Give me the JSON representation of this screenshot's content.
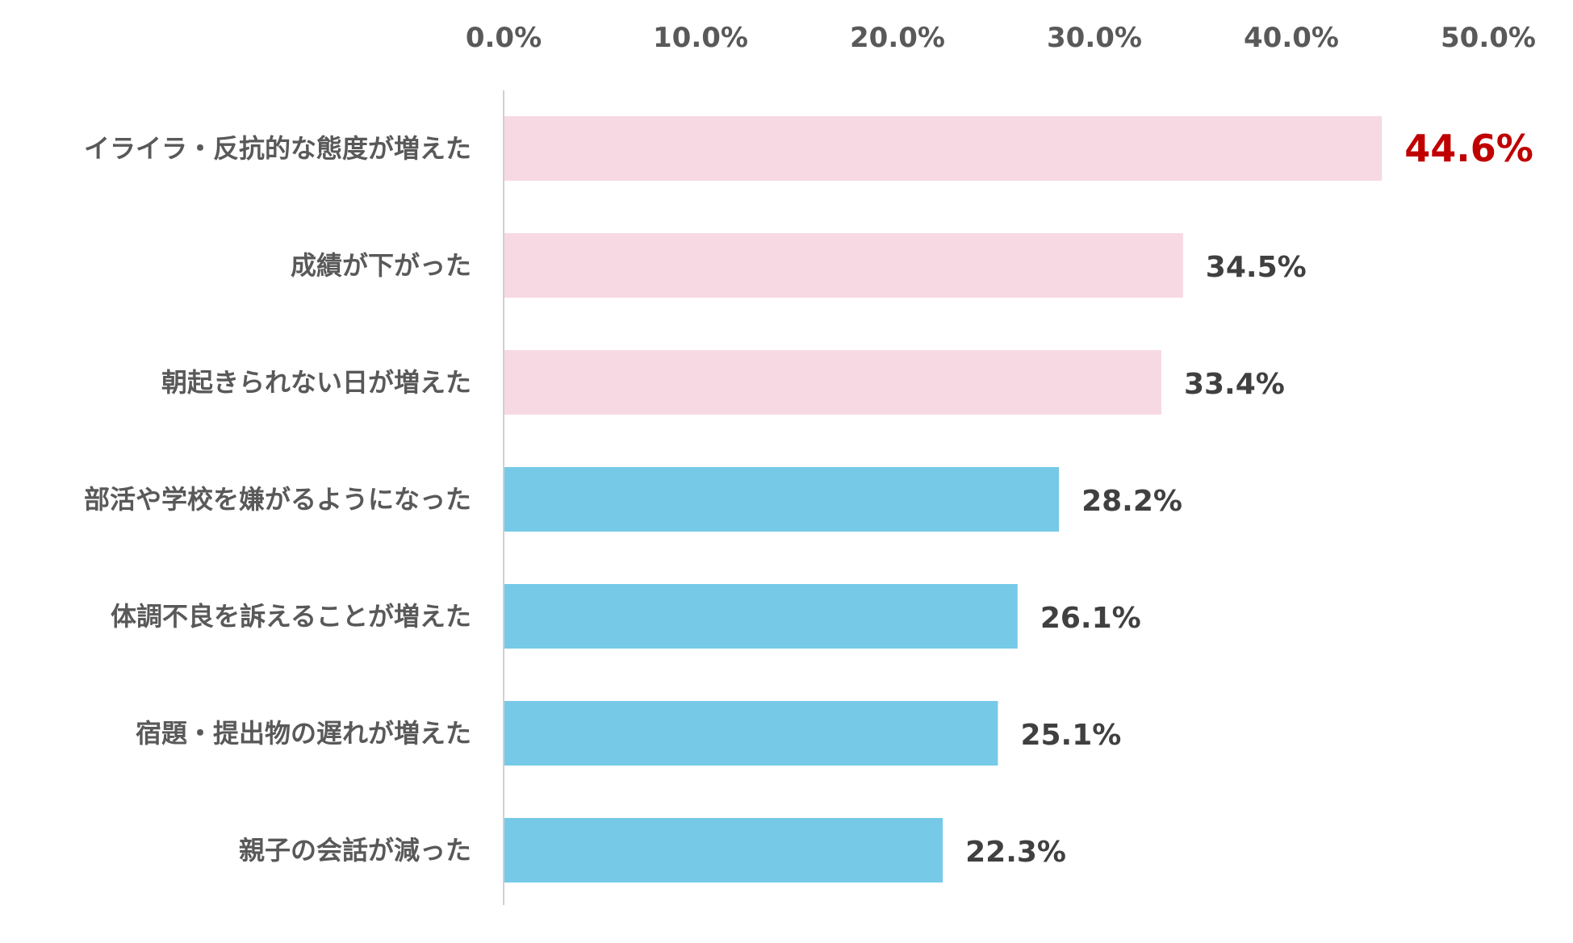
{
  "chart_data": {
    "type": "bar",
    "orientation": "horizontal",
    "title": "",
    "xlabel": "",
    "ylabel": "",
    "xlim": [
      0,
      50
    ],
    "ticks": [
      "0.0%",
      "10.0%",
      "20.0%",
      "30.0%",
      "40.0%",
      "50.0%"
    ],
    "tick_values": [
      0,
      10,
      20,
      30,
      40,
      50
    ],
    "grid": false,
    "categories": [
      "イライラ・反抗的な態度が増えた",
      "成績が下がった",
      "朝起きられない日が増えた",
      "部活や学校を嫌がるようになった",
      "体調不良を訴えることが増えた",
      "宿題・提出物の遅れが増えた",
      "親子の会話が減った"
    ],
    "values": [
      44.6,
      34.5,
      33.4,
      28.2,
      26.1,
      25.1,
      22.3
    ],
    "labels": [
      "44.6%",
      "34.5%",
      "33.4%",
      "28.2%",
      "26.1%",
      "25.1%",
      "22.3%"
    ],
    "highlight_count": 3,
    "colors": {
      "highlight_bar": "#F7D9E3",
      "normal_bar": "#76CAE8",
      "highlight_top_label": "#C00000",
      "value_label": "#404040",
      "category_label": "#595959",
      "axis": "#D0D0D0"
    }
  }
}
